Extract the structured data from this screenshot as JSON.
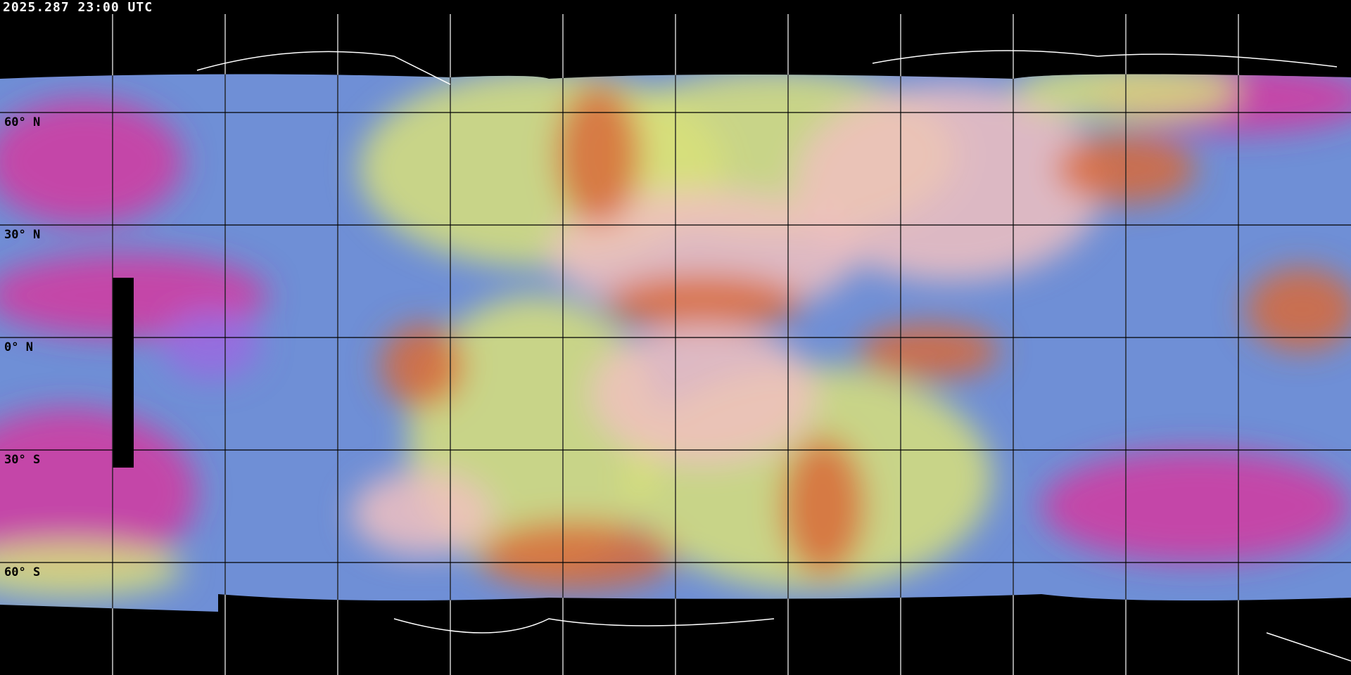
{
  "header": {
    "timestamp": "2025.287 23:00 UTC"
  },
  "grid": {
    "lat_labels": [
      "60° N",
      "30° N",
      "0° N",
      "30° S",
      "60° S"
    ],
    "lat_values": [
      60,
      30,
      0,
      -30,
      -60
    ],
    "lon_spacing_deg": 30
  },
  "colors": {
    "background": "#000000",
    "ocean_clear": "#6f8fd6",
    "cloud_high": "#d8e07a",
    "convection": "#d86a3a",
    "jet_magenta": "#d43aa0",
    "dust_pink": "#f0c0c0",
    "coastline_outside": "#ffffff",
    "coastline_inside": "#000000"
  }
}
